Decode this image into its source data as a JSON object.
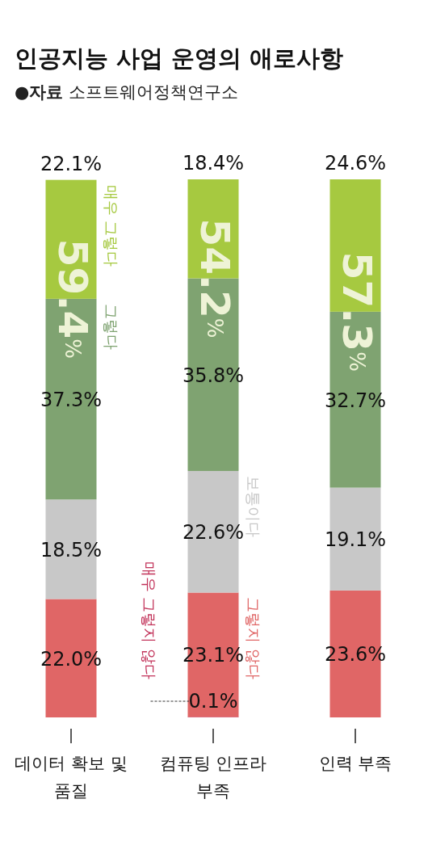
{
  "chart_data": {
    "type": "bar",
    "stacked": true,
    "title": "인공지능 사업 운영의 애로사항",
    "subtitle": "●**자료** 소프트웨어정책연구소",
    "categories": [
      "데이터 확보 및 품질",
      "컴퓨팅 인프라 부족",
      "인력 부족"
    ],
    "series": [
      {
        "name": "매우 그렇지 않다",
        "color": "#c2335a",
        "values": [
          null,
          0.1,
          null
        ],
        "value_labels": [
          null,
          "0.1%",
          null
        ]
      },
      {
        "name": "그렇지 않다",
        "color": "#e06666",
        "values": [
          22.0,
          23.1,
          23.6
        ],
        "value_labels": [
          "22.0%",
          "23.1%",
          "23.6%"
        ]
      },
      {
        "name": "보통이다",
        "color": "#c8c8c8",
        "values": [
          18.5,
          22.6,
          19.1
        ],
        "value_labels": [
          "18.5%",
          "22.6%",
          "19.1%"
        ]
      },
      {
        "name": "그렇다",
        "color": "#7fa371",
        "values": [
          37.3,
          35.8,
          32.7
        ],
        "value_labels": [
          "37.3%",
          "35.8%",
          "32.7%"
        ]
      },
      {
        "name": "매우 그렇다",
        "color": "#a6c940",
        "values": [
          22.1,
          18.4,
          24.6
        ],
        "value_labels": [
          "22.1%",
          "18.4%",
          "24.6%"
        ]
      }
    ],
    "annotations": [
      "59.4%",
      "54.2%",
      "57.3%"
    ]
  }
}
